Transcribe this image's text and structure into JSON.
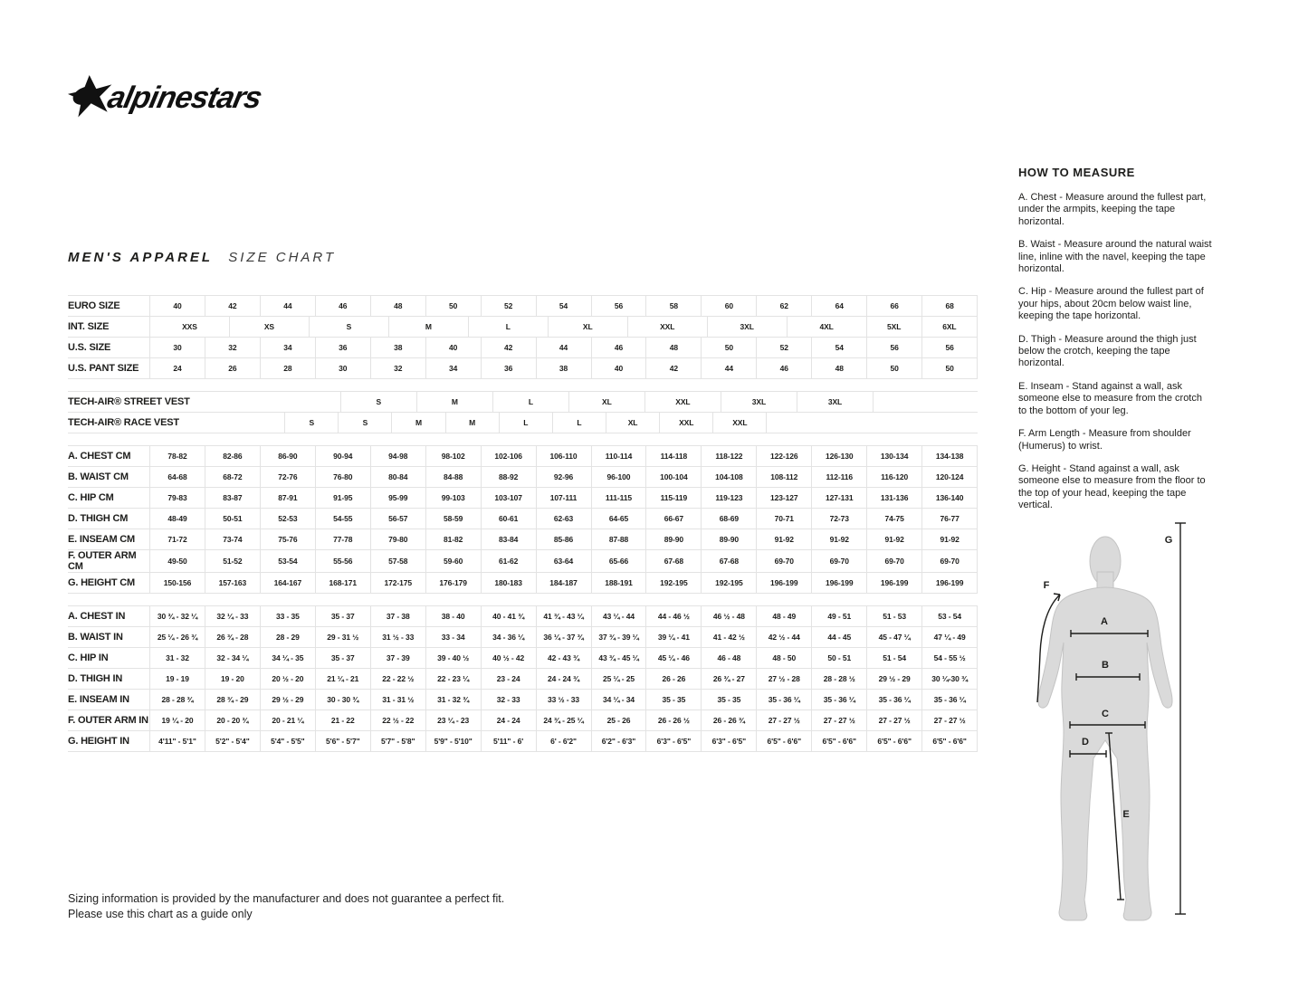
{
  "logo": {
    "text": "alpinestars"
  },
  "title": {
    "main": "MEN'S APPAREL",
    "sub": "SIZE CHART"
  },
  "table": {
    "groups": [
      {
        "name": "sizes",
        "rows": [
          {
            "label": "EURO SIZE",
            "cells": [
              "40",
              "42",
              "44",
              "46",
              "48",
              "50",
              "52",
              "54",
              "56",
              "58",
              "60",
              "62",
              "64",
              "66",
              "68"
            ]
          },
          {
            "label": "INT. SIZE",
            "cells": [
              "XXS",
              "XS",
              "S",
              "M",
              "L",
              "XL",
              "XXL",
              "3XL",
              "4XL",
              "5XL",
              "6XL"
            ],
            "spans": [
              13,
              13,
              13,
              13,
              13,
              13,
              13,
              13,
              13,
              9,
              9
            ]
          },
          {
            "label": "U.S. SIZE",
            "cells": [
              "30",
              "32",
              "34",
              "36",
              "38",
              "40",
              "42",
              "44",
              "46",
              "48",
              "50",
              "52",
              "54",
              "56",
              "56"
            ]
          },
          {
            "label": "U.S. PANT SIZE",
            "cells": [
              "24",
              "26",
              "28",
              "30",
              "32",
              "34",
              "36",
              "38",
              "40",
              "42",
              "44",
              "46",
              "48",
              "50",
              "50"
            ]
          }
        ]
      },
      {
        "name": "techair",
        "rows": [
          {
            "label": "TECH-AIR® STREET VEST",
            "cells": [
              "",
              "S",
              "M",
              "L",
              "XL",
              "XXL",
              "3XL",
              "3XL",
              ""
            ],
            "spans": [
              26,
              13,
              13,
              13,
              13,
              13,
              13,
              13,
              18
            ]
          },
          {
            "label": "TECH-AIR® RACE VEST",
            "cells": [
              "",
              "S",
              "S",
              "M",
              "M",
              "L",
              "L",
              "XL",
              "XXL",
              "XXL",
              ""
            ],
            "spans": [
              18,
              9,
              9,
              9,
              9,
              9,
              9,
              9,
              9,
              9,
              36
            ]
          }
        ]
      },
      {
        "name": "cm",
        "rows": [
          {
            "label": "A. CHEST CM",
            "cells": [
              "78-82",
              "82-86",
              "86-90",
              "90-94",
              "94-98",
              "98-102",
              "102-106",
              "106-110",
              "110-114",
              "114-118",
              "118-122",
              "122-126",
              "126-130",
              "130-134",
              "134-138"
            ]
          },
          {
            "label": "B. WAIST CM",
            "cells": [
              "64-68",
              "68-72",
              "72-76",
              "76-80",
              "80-84",
              "84-88",
              "88-92",
              "92-96",
              "96-100",
              "100-104",
              "104-108",
              "108-112",
              "112-116",
              "116-120",
              "120-124"
            ]
          },
          {
            "label": "C. HIP CM",
            "cells": [
              "79-83",
              "83-87",
              "87-91",
              "91-95",
              "95-99",
              "99-103",
              "103-107",
              "107-111",
              "111-115",
              "115-119",
              "119-123",
              "123-127",
              "127-131",
              "131-136",
              "136-140"
            ]
          },
          {
            "label": "D. THIGH CM",
            "cells": [
              "48-49",
              "50-51",
              "52-53",
              "54-55",
              "56-57",
              "58-59",
              "60-61",
              "62-63",
              "64-65",
              "66-67",
              "68-69",
              "70-71",
              "72-73",
              "74-75",
              "76-77"
            ]
          },
          {
            "label": "E. INSEAM CM",
            "cells": [
              "71-72",
              "73-74",
              "75-76",
              "77-78",
              "79-80",
              "81-82",
              "83-84",
              "85-86",
              "87-88",
              "89-90",
              "89-90",
              "91-92",
              "91-92",
              "91-92",
              "91-92"
            ]
          },
          {
            "label": "F. OUTER ARM CM",
            "cells": [
              "49-50",
              "51-52",
              "53-54",
              "55-56",
              "57-58",
              "59-60",
              "61-62",
              "63-64",
              "65-66",
              "67-68",
              "67-68",
              "69-70",
              "69-70",
              "69-70",
              "69-70"
            ]
          },
          {
            "label": "G. HEIGHT CM",
            "cells": [
              "150-156",
              "157-163",
              "164-167",
              "168-171",
              "172-175",
              "176-179",
              "180-183",
              "184-187",
              "188-191",
              "192-195",
              "192-195",
              "196-199",
              "196-199",
              "196-199",
              "196-199"
            ]
          }
        ]
      },
      {
        "name": "inches",
        "rows": [
          {
            "label": "A. CHEST IN",
            "cells": [
              "30 ¾ - 32 ¼",
              "32 ¼ - 33",
              "33 - 35",
              "35 - 37",
              "37 - 38",
              "38 - 40",
              "40 - 41 ¾",
              "41 ¾ - 43 ¼",
              "43 ¼ - 44",
              "44 - 46 ½",
              "46 ½ - 48",
              "48 - 49",
              "49 - 51",
              "51 - 53",
              "53 - 54"
            ]
          },
          {
            "label": "B. WAIST IN",
            "cells": [
              "25 ¼ - 26 ¾",
              "26 ¾ - 28",
              "28 - 29",
              "29 - 31 ½",
              "31 ½ - 33",
              "33 - 34",
              "34 - 36 ¼",
              "36 ¼ - 37 ¾",
              "37 ¾ - 39 ¼",
              "39 ¼ - 41",
              "41 - 42 ½",
              "42 ½ - 44",
              "44 - 45",
              "45 - 47 ¼",
              "47 ¼ - 49"
            ]
          },
          {
            "label": "C. HIP IN",
            "cells": [
              "31 - 32",
              "32 - 34 ¼",
              "34 ¼ - 35",
              "35 - 37",
              "37 - 39",
              "39 - 40 ½",
              "40 ½ - 42",
              "42 - 43 ¾",
              "43 ¾ - 45 ¼",
              "45 ¼ - 46",
              "46 - 48",
              "48 - 50",
              "50 - 51",
              "51 - 54",
              "54 - 55 ½"
            ]
          },
          {
            "label": "D. THIGH IN",
            "cells": [
              "19 - 19",
              "19 - 20",
              "20 ½ - 20",
              "21 ¼ - 21",
              "22 - 22 ½",
              "22 - 23 ¼",
              "23 - 24",
              "24 - 24 ¾",
              "25 ¼ - 25",
              "26 - 26",
              "26 ¾ - 27",
              "27 ½ - 28",
              "28 - 28 ½",
              "29 ½ - 29",
              "30 ¼-30 ¾"
            ]
          },
          {
            "label": "E. INSEAM IN",
            "cells": [
              "28 - 28 ¾",
              "28 ¾ - 29",
              "29 ½ - 29",
              "30 - 30 ¾",
              "31 - 31 ½",
              "31 - 32 ¾",
              "32 - 33",
              "33 ½ - 33",
              "34 ¼ - 34",
              "35 - 35",
              "35 - 35",
              "35 - 36 ¼",
              "35 - 36 ¼",
              "35 - 36 ¼",
              "35 - 36 ¼"
            ]
          },
          {
            "label": "F. OUTER ARM IN",
            "cells": [
              "19 ¼ - 20",
              "20 - 20 ¾",
              "20 - 21 ¼",
              "21 - 22",
              "22 ½ - 22",
              "23 ¼ - 23",
              "24 - 24",
              "24 ¾ - 25 ¼",
              "25 - 26",
              "26 - 26 ½",
              "26 - 26 ¾",
              "27 - 27 ½",
              "27 - 27 ½",
              "27 - 27 ½",
              "27 - 27 ½"
            ]
          },
          {
            "label": "G. HEIGHT IN",
            "cells": [
              "4'11\" - 5'1\"",
              "5'2\" - 5'4\"",
              "5'4\" - 5'5\"",
              "5'6\" - 5'7\"",
              "5'7\" - 5'8\"",
              "5'9\" - 5'10\"",
              "5'11\" - 6'",
              "6' - 6'2\"",
              "6'2\" - 6'3\"",
              "6'3\" - 6'5\"",
              "6'3\" - 6'5\"",
              "6'5\" - 6'6\"",
              "6'5\" - 6'6\"",
              "6'5\" - 6'6\"",
              "6'5\" - 6'6\""
            ]
          }
        ]
      }
    ]
  },
  "measure_guide": {
    "heading": "HOW TO MEASURE",
    "items": [
      "A. Chest - Measure around the fullest part, under the armpits, keeping the tape horizontal.",
      "B. Waist - Measure around the natural waist line, inline with the navel, keeping the tape horizontal.",
      "C. Hip - Measure around the fullest part of your hips, about 20cm below waist line, keeping the tape horizontal.",
      "D. Thigh - Measure around the thigh just below the crotch, keeping the tape horizontal.",
      "E. Inseam - Stand against a wall, ask someone else to measure from the crotch to the bottom of your leg.",
      "F. Arm Length - Measure from shoulder (Humerus) to wrist.",
      "G. Height - Stand against a wall, ask someone else to measure from the floor to the top of your head, keeping the tape vertical."
    ]
  },
  "diagram": {
    "labels": [
      "A",
      "B",
      "C",
      "D",
      "E",
      "F",
      "G"
    ]
  },
  "disclaimer": {
    "line1": "Sizing information is provided by the manufacturer and does not guarantee a perfect fit.",
    "line2": "Please use this chart as a guide only"
  }
}
